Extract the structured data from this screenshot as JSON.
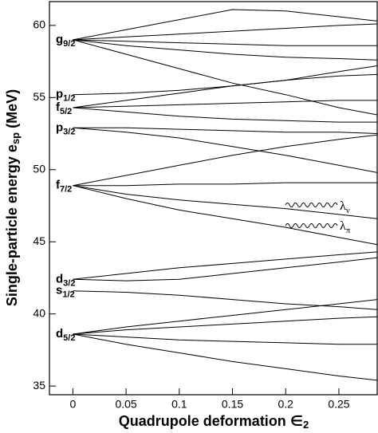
{
  "chart_data": {
    "type": "line",
    "x_label": {
      "text": "Quadrupole deformation ∈",
      "sub": "2"
    },
    "y_label": {
      "text": "Single-particle energy e",
      "sub": "sp",
      "tail": " (MeV)"
    },
    "xlim": [
      -0.022,
      0.286
    ],
    "ylim": [
      34.4,
      61.65
    ],
    "xticks": [
      0,
      0.05,
      0.1,
      0.15,
      0.2,
      0.25
    ],
    "yticks": [
      35,
      40,
      45,
      50,
      55,
      60
    ],
    "color": "#000000",
    "x": [
      0,
      0.05,
      0.1,
      0.15,
      0.2,
      0.25,
      0.286
    ],
    "series": [
      {
        "values": [
          59.0,
          59.7,
          60.4,
          61.1,
          61.0,
          60.6,
          60.3
        ]
      },
      {
        "values": [
          59.0,
          59.2,
          59.4,
          59.6,
          59.8,
          60.0,
          60.1
        ]
      },
      {
        "values": [
          59.0,
          58.9,
          58.8,
          58.7,
          58.6,
          58.6,
          58.6
        ]
      },
      {
        "values": [
          59.0,
          58.6,
          58.3,
          58.0,
          57.8,
          57.7,
          57.6
        ]
      },
      {
        "values": [
          59.0,
          58.0,
          57.0,
          56.0,
          55.2,
          54.3,
          53.8
        ]
      },
      {
        "values": [
          55.2,
          55.3,
          55.5,
          55.8,
          56.2,
          56.8,
          57.2
        ]
      },
      {
        "values": [
          54.3,
          54.8,
          55.3,
          55.8,
          56.2,
          56.5,
          56.6
        ]
      },
      {
        "values": [
          54.3,
          54.4,
          54.5,
          54.6,
          54.7,
          54.8,
          54.8
        ]
      },
      {
        "values": [
          54.3,
          54.0,
          53.7,
          53.5,
          53.4,
          53.3,
          53.3
        ]
      },
      {
        "values": [
          52.9,
          52.9,
          52.8,
          52.7,
          52.6,
          52.6,
          52.5
        ]
      },
      {
        "values": [
          52.9,
          52.6,
          52.2,
          51.6,
          51.0,
          50.3,
          49.8
        ]
      },
      {
        "values": [
          48.9,
          49.6,
          50.3,
          51.0,
          51.6,
          52.1,
          52.4
        ]
      },
      {
        "values": [
          48.9,
          48.9,
          49.0,
          49.0,
          49.1,
          49.1,
          49.1
        ]
      },
      {
        "values": [
          48.9,
          48.3,
          47.9,
          47.6,
          47.3,
          46.9,
          46.6
        ]
      },
      {
        "values": [
          48.9,
          48.0,
          47.2,
          46.6,
          46.0,
          45.3,
          44.8
        ]
      },
      {
        "values": [
          42.4,
          42.8,
          43.2,
          43.5,
          43.8,
          44.1,
          44.3
        ]
      },
      {
        "values": [
          42.4,
          42.3,
          42.4,
          42.8,
          43.2,
          43.6,
          43.9
        ]
      },
      {
        "values": [
          41.6,
          41.5,
          41.3,
          41.0,
          40.7,
          40.5,
          40.3
        ]
      },
      {
        "values": [
          38.6,
          39.1,
          39.5,
          39.9,
          40.3,
          40.7,
          41.0
        ]
      },
      {
        "values": [
          38.6,
          38.9,
          39.1,
          39.3,
          39.5,
          39.7,
          39.8
        ]
      },
      {
        "values": [
          38.6,
          38.4,
          38.2,
          38.1,
          38.0,
          37.9,
          37.9
        ]
      },
      {
        "values": [
          38.6,
          37.9,
          37.3,
          36.7,
          36.2,
          35.7,
          35.4
        ]
      }
    ],
    "levels": [
      {
        "label": "g",
        "sub": "9/2",
        "energy": 59.0
      },
      {
        "label": "p",
        "sub": "1/2",
        "energy": 55.2
      },
      {
        "label": "f",
        "sub": "5/2",
        "energy": 54.3
      },
      {
        "label": "p",
        "sub": "3/2",
        "energy": 52.9
      },
      {
        "label": "f",
        "sub": "7/2",
        "energy": 48.9
      },
      {
        "label": "d",
        "sub": "3/2",
        "energy": 42.4
      },
      {
        "label": "s",
        "sub": "1/2",
        "energy": 41.6
      },
      {
        "label": "d",
        "sub": "5/2",
        "energy": 38.6
      }
    ],
    "annotations": [
      {
        "label": "λ",
        "sub": "ν"
      },
      {
        "label": "λ",
        "sub": "π"
      }
    ]
  }
}
